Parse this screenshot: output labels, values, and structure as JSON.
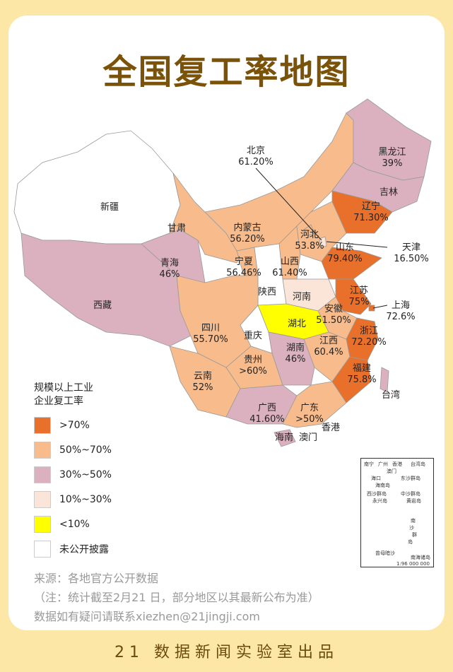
{
  "title": "全国复工率地图",
  "colors": {
    ">70%": "#e8702a",
    "50%~70%": "#f7bb8c",
    "30%~50%": "#dcb1bf",
    "10%~30%": "#fbe5d8",
    "<10%": "#ffff00",
    "未公开披露": "#ffffff"
  },
  "provinces": [
    {
      "name": "新疆",
      "rate": "",
      "cat": "未公开披露"
    },
    {
      "name": "西藏",
      "rate": "",
      "cat": "30%~50%"
    },
    {
      "name": "青海",
      "rate": "46%",
      "cat": "30%~50%"
    },
    {
      "name": "甘肃",
      "rate": "",
      "cat": "50%~70%"
    },
    {
      "name": "内蒙古",
      "rate": "56.20%",
      "cat": "50%~70%"
    },
    {
      "name": "宁夏",
      "rate": "56.46%",
      "cat": "50%~70%"
    },
    {
      "name": "山西",
      "rate": "61.40%",
      "cat": "50%~70%"
    },
    {
      "name": "河北",
      "rate": "53.8%",
      "cat": "50%~70%"
    },
    {
      "name": "北京",
      "rate": "61.20%",
      "cat": "50%~70%"
    },
    {
      "name": "天津",
      "rate": "16.50%",
      "cat": "10%~30%"
    },
    {
      "name": "辽宁",
      "rate": "71.30%",
      "cat": ">70%"
    },
    {
      "name": "吉林",
      "rate": "",
      "cat": "30%~50%"
    },
    {
      "name": "黑龙江",
      "rate": "39%",
      "cat": "30%~50%"
    },
    {
      "name": "山东",
      "rate": "79.40%",
      "cat": ">70%"
    },
    {
      "name": "河南",
      "rate": "",
      "cat": "10%~30%"
    },
    {
      "name": "陕西",
      "rate": "",
      "cat": "未公开披露"
    },
    {
      "name": "江苏",
      "rate": "75%",
      "cat": ">70%"
    },
    {
      "name": "安徽",
      "rate": "51.50%",
      "cat": "50%~70%"
    },
    {
      "name": "上海",
      "rate": "72.6%",
      "cat": ">70%"
    },
    {
      "name": "湖北",
      "rate": "",
      "cat": "<10%"
    },
    {
      "name": "重庆",
      "rate": "",
      "cat": "未公开披露"
    },
    {
      "name": "四川",
      "rate": "55.70%",
      "cat": "50%~70%"
    },
    {
      "name": "浙江",
      "rate": "72.20%",
      "cat": ">70%"
    },
    {
      "name": "江西",
      "rate": "60.4%",
      "cat": "50%~70%"
    },
    {
      "name": "湖南",
      "rate": "46%",
      "cat": "30%~50%"
    },
    {
      "name": "贵州",
      "rate": ">60%",
      "cat": "50%~70%"
    },
    {
      "name": "云南",
      "rate": "52%",
      "cat": "50%~70%"
    },
    {
      "name": "福建",
      "rate": "75.8%",
      "cat": ">70%"
    },
    {
      "name": "广西",
      "rate": "41.60%",
      "cat": "30%~50%"
    },
    {
      "name": "广东",
      "rate": ">50%",
      "cat": "50%~70%"
    },
    {
      "name": "香港",
      "rate": "",
      "cat": ""
    },
    {
      "name": "澳门",
      "rate": "",
      "cat": ""
    },
    {
      "name": "台湾",
      "rate": "",
      "cat": "30%~50%"
    },
    {
      "name": "海南",
      "rate": "",
      "cat": "30%~50%"
    }
  ],
  "legend": {
    "title_line1": "规模以上工业",
    "title_line2": "企业复工率",
    "items": [
      ">70%",
      "50%~70%",
      "30%~50%",
      "10%~30%",
      "<10%",
      "未公开披露"
    ]
  },
  "inset": {
    "labels": [
      "南宁",
      "广州",
      "香港",
      "澳门",
      "台湾岛",
      "海口",
      "海南岛",
      "东沙群岛",
      "西沙群岛",
      "永兴岛",
      "中沙群岛",
      "黄岩岛",
      "南",
      "沙",
      "群",
      "岛",
      "曾母暗沙",
      "南海诸岛",
      "1:96 000 000"
    ]
  },
  "source": {
    "line1": "来源：各地官方公开数据",
    "line2": "（注：统计截至2月21 日，部分地区以其最新公布为准）",
    "line3": "数据如有疑问请联系xiezhen@21jingji.com"
  },
  "footer": "21 数据新闻实验室出品"
}
